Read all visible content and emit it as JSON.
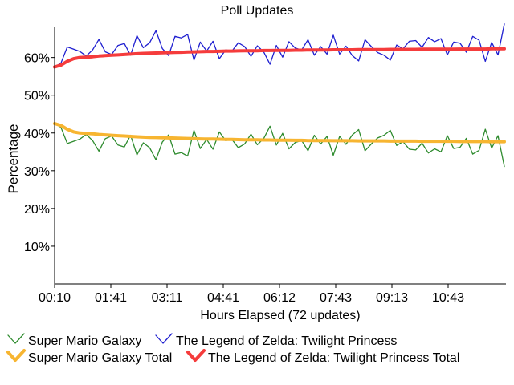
{
  "chart_data": {
    "type": "line",
    "title": "Poll Updates",
    "xlabel": "Hours Elapsed (72 updates)",
    "ylabel": "Percentage",
    "x_tick_labels": [
      "00:10",
      "01:41",
      "03:11",
      "04:41",
      "06:12",
      "07:43",
      "09:13",
      "10:43"
    ],
    "y_ticks": [
      10,
      20,
      30,
      40,
      50,
      60
    ],
    "y_tick_labels": [
      "10%",
      "20%",
      "30%",
      "40%",
      "50%",
      "60%"
    ],
    "ylim": [
      0,
      68
    ],
    "grid": false,
    "legend_position": "bottom",
    "num_points": 72,
    "series": [
      {
        "name": "Super Mario Galaxy",
        "color": "#2e8b2e",
        "style": "thin",
        "values": [
          42.5,
          41.5,
          37.2,
          37.8,
          38.4,
          39.6,
          38.0,
          35.2,
          38.5,
          39.2,
          36.8,
          36.3,
          39.4,
          34.2,
          37.4,
          36.1,
          32.9,
          37.6,
          39.5,
          34.4,
          34.8,
          33.9,
          40.7,
          35.9,
          38.3,
          35.7,
          40.3,
          38.0,
          38.3,
          36.1,
          37.1,
          39.7,
          36.9,
          38.5,
          41.8,
          36.8,
          39.9,
          35.8,
          37.5,
          38.0,
          35.3,
          39.4,
          37.1,
          39.1,
          34.1,
          39.1,
          37.0,
          39.5,
          40.9,
          35.3,
          37.1,
          38.7,
          39.4,
          40.7,
          36.7,
          37.7,
          35.7,
          35.5,
          37.3,
          34.7,
          35.8,
          35.0,
          39.3,
          35.9,
          36.2,
          38.6,
          34.4,
          35.4,
          41.0,
          36.0,
          39.3,
          31.1
        ]
      },
      {
        "name": "The Legend of Zelda: Twilight Princess",
        "color": "#1f1fd0",
        "style": "thin",
        "values": [
          57.5,
          58.5,
          62.8,
          62.2,
          61.6,
          60.4,
          62.0,
          64.8,
          61.5,
          60.8,
          63.2,
          63.7,
          60.6,
          65.8,
          62.6,
          63.9,
          67.1,
          62.4,
          60.5,
          65.6,
          65.2,
          66.1,
          59.3,
          64.1,
          61.7,
          64.3,
          59.7,
          62.0,
          61.7,
          63.9,
          62.9,
          60.3,
          63.1,
          61.5,
          58.2,
          63.2,
          60.1,
          64.2,
          62.5,
          62.0,
          64.7,
          60.6,
          62.9,
          60.9,
          65.9,
          60.9,
          63.0,
          60.5,
          59.1,
          64.7,
          62.9,
          61.3,
          60.6,
          59.3,
          63.3,
          62.3,
          64.3,
          64.5,
          62.7,
          65.3,
          64.2,
          65.0,
          60.7,
          64.1,
          63.8,
          61.4,
          65.6,
          64.6,
          59.0,
          64.0,
          60.7,
          68.9
        ]
      },
      {
        "name": "Super Mario Galaxy Total",
        "color": "#f7b531",
        "style": "thick",
        "values": [
          42.5,
          42.0,
          41.0,
          40.3,
          40.0,
          39.9,
          39.8,
          39.6,
          39.5,
          39.4,
          39.3,
          39.2,
          39.1,
          39.0,
          38.9,
          38.85,
          38.8,
          38.75,
          38.7,
          38.65,
          38.6,
          38.55,
          38.5,
          38.45,
          38.4,
          38.4,
          38.35,
          38.3,
          38.3,
          38.25,
          38.2,
          38.2,
          38.2,
          38.15,
          38.15,
          38.1,
          38.1,
          38.1,
          38.05,
          38.05,
          38.0,
          38.0,
          38.0,
          38.0,
          37.95,
          37.95,
          37.95,
          37.95,
          37.9,
          37.9,
          37.9,
          37.9,
          37.9,
          37.85,
          37.85,
          37.85,
          37.85,
          37.85,
          37.8,
          37.8,
          37.8,
          37.8,
          37.8,
          37.8,
          37.75,
          37.75,
          37.75,
          37.75,
          37.75,
          37.7,
          37.7,
          37.7
        ]
      },
      {
        "name": "The Legend of Zelda: Twilight Princess Total",
        "color": "#f53c3c",
        "style": "thick",
        "values": [
          57.5,
          58.0,
          59.0,
          59.7,
          60.0,
          60.1,
          60.2,
          60.4,
          60.5,
          60.6,
          60.7,
          60.8,
          60.9,
          61.0,
          61.1,
          61.15,
          61.2,
          61.25,
          61.3,
          61.35,
          61.4,
          61.45,
          61.5,
          61.55,
          61.6,
          61.6,
          61.65,
          61.7,
          61.7,
          61.75,
          61.8,
          61.8,
          61.8,
          61.85,
          61.85,
          61.9,
          61.9,
          61.9,
          61.95,
          61.95,
          62.0,
          62.0,
          62.0,
          62.0,
          62.05,
          62.05,
          62.05,
          62.05,
          62.1,
          62.1,
          62.1,
          62.1,
          62.1,
          62.15,
          62.15,
          62.15,
          62.15,
          62.15,
          62.2,
          62.2,
          62.2,
          62.2,
          62.2,
          62.2,
          62.25,
          62.25,
          62.25,
          62.25,
          62.25,
          62.3,
          62.3,
          62.3
        ]
      }
    ]
  }
}
